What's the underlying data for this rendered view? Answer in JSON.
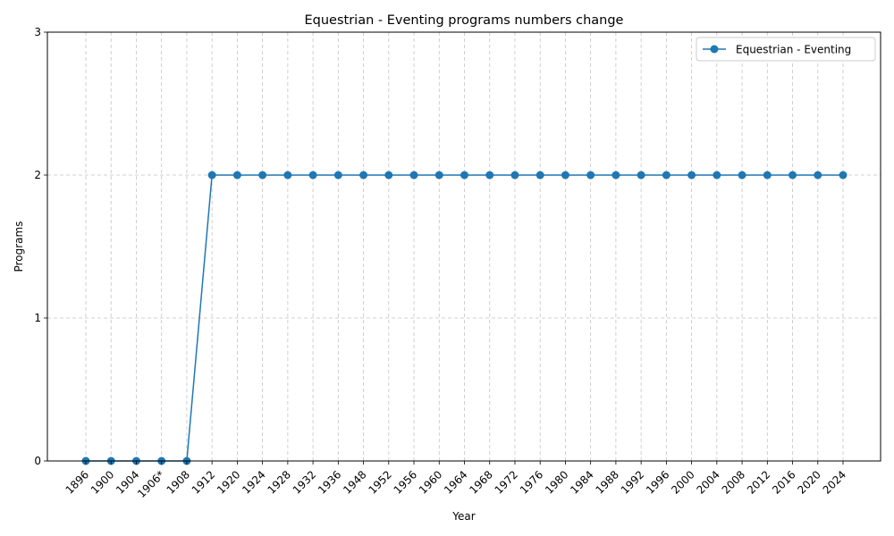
{
  "chart_data": {
    "type": "line",
    "title": "Equestrian - Eventing programs numbers change",
    "xlabel": "Year",
    "ylabel": "Programs",
    "categories": [
      "1896",
      "1900",
      "1904",
      "1906*",
      "1908",
      "1912",
      "1920",
      "1924",
      "1928",
      "1932",
      "1936",
      "1948",
      "1952",
      "1956",
      "1960",
      "1964",
      "1968",
      "1972",
      "1976",
      "1980",
      "1984",
      "1988",
      "1992",
      "1996",
      "2000",
      "2004",
      "2008",
      "2012",
      "2016",
      "2020",
      "2024"
    ],
    "series": [
      {
        "name": "Equestrian - Eventing",
        "values": [
          0,
          0,
          0,
          0,
          0,
          2,
          2,
          2,
          2,
          2,
          2,
          2,
          2,
          2,
          2,
          2,
          2,
          2,
          2,
          2,
          2,
          2,
          2,
          2,
          2,
          2,
          2,
          2,
          2,
          2,
          2
        ],
        "color": "#1f77b4"
      }
    ],
    "ylim": [
      0,
      3
    ],
    "yticks": [
      0,
      1,
      2,
      3
    ],
    "grid": true,
    "legend_position": "top-right"
  }
}
